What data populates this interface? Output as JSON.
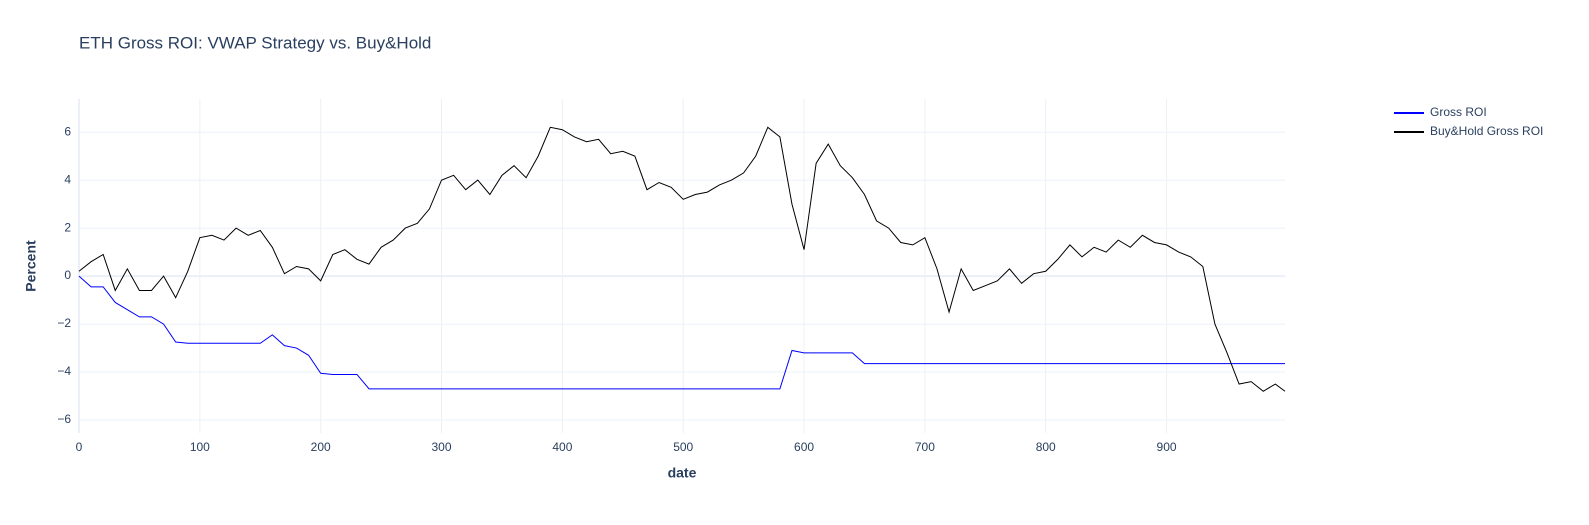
{
  "chart_data": {
    "type": "line",
    "title": "ETH Gross ROI: VWAP Strategy vs. Buy&Hold",
    "x_label": "date",
    "y_label": "Percent",
    "x": [
      0,
      10,
      20,
      30,
      40,
      50,
      60,
      70,
      80,
      90,
      100,
      110,
      120,
      130,
      140,
      150,
      160,
      170,
      180,
      190,
      200,
      210,
      220,
      230,
      240,
      250,
      260,
      270,
      280,
      290,
      300,
      310,
      320,
      330,
      340,
      350,
      360,
      370,
      380,
      390,
      400,
      410,
      420,
      430,
      440,
      450,
      460,
      470,
      480,
      490,
      500,
      510,
      520,
      530,
      540,
      550,
      560,
      570,
      580,
      590,
      600,
      610,
      620,
      630,
      640,
      650,
      660,
      670,
      680,
      690,
      700,
      710,
      720,
      730,
      740,
      750,
      760,
      770,
      780,
      790,
      800,
      810,
      820,
      830,
      840,
      850,
      860,
      870,
      880,
      890,
      900,
      910,
      920,
      930,
      940,
      950,
      960,
      970,
      980,
      990,
      998
    ],
    "series": [
      {
        "name": "Gross ROI",
        "color": "#0000ff",
        "values": [
          0,
          -0.45,
          -0.45,
          -1.1,
          -1.4,
          -1.7,
          -1.7,
          -2.0,
          -2.75,
          -2.8,
          -2.8,
          -2.8,
          -2.8,
          -2.8,
          -2.8,
          -2.8,
          -2.45,
          -2.9,
          -3.0,
          -3.3,
          -4.05,
          -4.1,
          -4.1,
          -4.1,
          -4.7,
          -4.7,
          -4.7,
          -4.7,
          -4.7,
          -4.7,
          -4.7,
          -4.7,
          -4.7,
          -4.7,
          -4.7,
          -4.7,
          -4.7,
          -4.7,
          -4.7,
          -4.7,
          -4.7,
          -4.7,
          -4.7,
          -4.7,
          -4.7,
          -4.7,
          -4.7,
          -4.7,
          -4.7,
          -4.7,
          -4.7,
          -4.7,
          -4.7,
          -4.7,
          -4.7,
          -4.7,
          -4.7,
          -4.7,
          -4.7,
          -3.1,
          -3.2,
          -3.2,
          -3.2,
          -3.2,
          -3.2,
          -3.65,
          -3.65,
          -3.65,
          -3.65,
          -3.65,
          -3.65,
          -3.65,
          -3.65,
          -3.65,
          -3.65,
          -3.65,
          -3.65,
          -3.65,
          -3.65,
          -3.65,
          -3.65,
          -3.65,
          -3.65,
          -3.65,
          -3.65,
          -3.65,
          -3.65,
          -3.65,
          -3.65,
          -3.65,
          -3.65,
          -3.65,
          -3.65,
          -3.65,
          -3.65,
          -3.65,
          -3.65,
          -3.65,
          -3.65,
          -3.65,
          -3.65
        ]
      },
      {
        "name": "Buy&Hold Gross ROI",
        "color": "#000000",
        "values": [
          0.2,
          0.6,
          0.9,
          -0.6,
          0.3,
          -0.6,
          -0.6,
          0,
          -0.9,
          0.2,
          1.6,
          1.7,
          1.5,
          2.0,
          1.7,
          1.9,
          1.2,
          0.1,
          0.4,
          0.3,
          -0.2,
          0.9,
          1.1,
          0.7,
          0.5,
          1.2,
          1.5,
          2.0,
          2.2,
          2.8,
          4.0,
          4.2,
          3.6,
          4.0,
          3.4,
          4.2,
          4.6,
          4.1,
          5.0,
          6.2,
          6.1,
          5.8,
          5.6,
          5.7,
          5.1,
          5.2,
          5.0,
          3.6,
          3.9,
          3.7,
          3.2,
          3.4,
          3.5,
          3.8,
          4.0,
          4.3,
          5.0,
          6.2,
          5.8,
          3.0,
          1.1,
          4.7,
          5.5,
          4.6,
          4.1,
          3.4,
          2.3,
          2.0,
          1.4,
          1.3,
          1.6,
          0.3,
          -1.5,
          0.3,
          -0.6,
          -0.4,
          -0.2,
          0.3,
          -0.3,
          0.1,
          0.2,
          0.7,
          1.3,
          0.8,
          1.2,
          1.0,
          1.5,
          1.2,
          1.7,
          1.4,
          1.3,
          1.0,
          0.8,
          0.4,
          -2.0,
          -3.2,
          -4.5,
          -4.4,
          -4.8,
          -4.5,
          -4.8
        ]
      }
    ],
    "xlim": [
      0,
      998
    ],
    "xticks": [
      0,
      100,
      200,
      300,
      400,
      500,
      600,
      700,
      800,
      900
    ],
    "ylim": [
      -6.54,
      7.38
    ],
    "yticks": [
      {
        "value": -6,
        "label": "−6"
      },
      {
        "value": -4,
        "label": "−4"
      },
      {
        "value": -2,
        "label": "−2"
      },
      0,
      2,
      4,
      6
    ],
    "grid": true,
    "legend": "top-right"
  }
}
